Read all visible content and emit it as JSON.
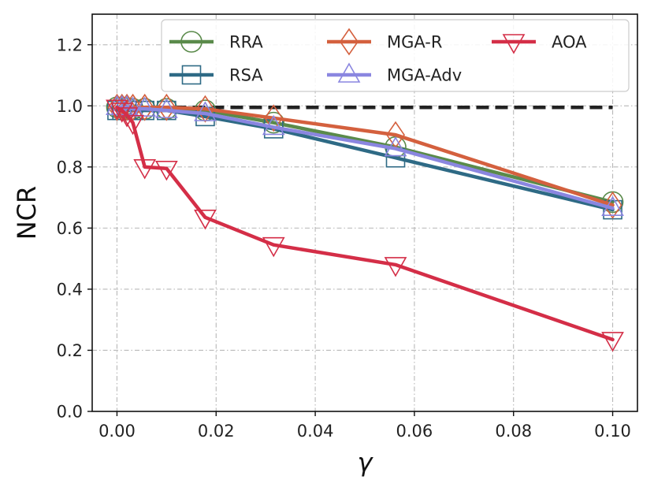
{
  "chart_data": {
    "type": "line",
    "title": "",
    "xlabel": "γ",
    "ylabel": "NCR",
    "xlim": [
      -0.005,
      0.105
    ],
    "ylim": [
      0.0,
      1.3
    ],
    "grid": true,
    "legend_position": "top-right",
    "legend_columns": 3,
    "x_ticks": [
      {
        "value": 0.0,
        "label": "0.00"
      },
      {
        "value": 0.02,
        "label": "0.02"
      },
      {
        "value": 0.04,
        "label": "0.04"
      },
      {
        "value": 0.06,
        "label": "0.06"
      },
      {
        "value": 0.08,
        "label": "0.08"
      },
      {
        "value": 0.1,
        "label": "0.10"
      }
    ],
    "y_ticks": [
      {
        "value": 0.0,
        "label": "0.0"
      },
      {
        "value": 0.2,
        "label": "0.2"
      },
      {
        "value": 0.4,
        "label": "0.4"
      },
      {
        "value": 0.6,
        "label": "0.6"
      },
      {
        "value": 0.8,
        "label": "0.8"
      },
      {
        "value": 1.0,
        "label": "1.0"
      },
      {
        "value": 1.2,
        "label": "1.2"
      }
    ],
    "reference_line": {
      "y": 0.995,
      "x_range": [
        0.0,
        0.1
      ],
      "style": "dashed",
      "color": "#222222"
    },
    "series": [
      {
        "name": "RRA",
        "color": "#5a8a4a",
        "marker": "circle",
        "x": [
          0.0,
          0.001,
          0.002,
          0.0032,
          0.0056,
          0.01,
          0.0178,
          0.0316,
          0.0562,
          0.1
        ],
        "y": [
          0.995,
          0.995,
          0.993,
          0.99,
          0.99,
          0.99,
          0.985,
          0.945,
          0.865,
          0.685
        ]
      },
      {
        "name": "RSA",
        "color": "#2e6a85",
        "marker": "square",
        "x": [
          0.0,
          0.001,
          0.002,
          0.0032,
          0.0056,
          0.01,
          0.0178,
          0.0316,
          0.0562,
          0.1
        ],
        "y": [
          0.985,
          0.985,
          0.985,
          0.985,
          0.985,
          0.985,
          0.965,
          0.925,
          0.83,
          0.66
        ]
      },
      {
        "name": "MGA-R",
        "color": "#d4603e",
        "marker": "diamond",
        "x": [
          0.0,
          0.001,
          0.002,
          0.0032,
          0.0056,
          0.01,
          0.0178,
          0.0316,
          0.0562,
          0.1
        ],
        "y": [
          0.995,
          0.995,
          0.995,
          0.995,
          0.995,
          0.995,
          0.99,
          0.96,
          0.905,
          0.675
        ]
      },
      {
        "name": "MGA-Adv",
        "color": "#8a86e0",
        "marker": "triangle-up",
        "x": [
          0.0,
          0.001,
          0.002,
          0.0032,
          0.0056,
          0.01,
          0.0178,
          0.0316,
          0.0562,
          0.1
        ],
        "y": [
          0.995,
          0.995,
          0.995,
          0.99,
          0.99,
          0.985,
          0.975,
          0.93,
          0.86,
          0.665
        ]
      },
      {
        "name": "AOA",
        "color": "#d42e47",
        "marker": "triangle-down",
        "x": [
          0.0,
          0.001,
          0.002,
          0.0032,
          0.0056,
          0.01,
          0.0178,
          0.0316,
          0.0562,
          0.1
        ],
        "y": [
          0.995,
          0.985,
          0.97,
          0.945,
          0.8,
          0.795,
          0.635,
          0.545,
          0.48,
          0.235
        ]
      }
    ]
  }
}
